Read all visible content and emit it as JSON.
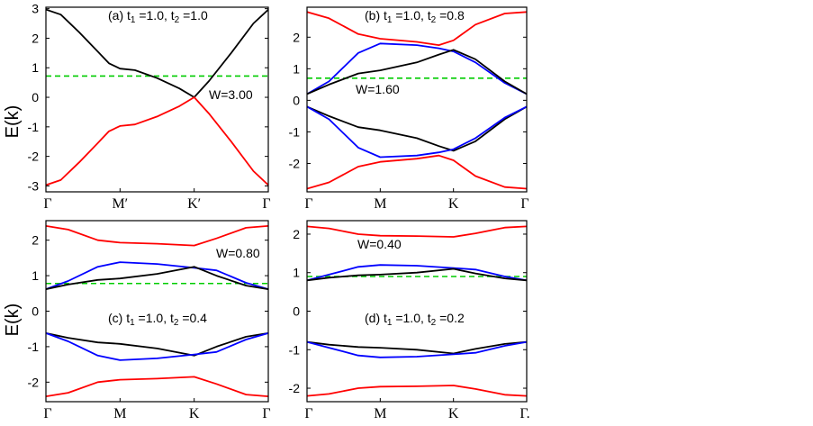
{
  "figure": {
    "ylabel": "E(k)"
  },
  "chart_data": [
    {
      "id": "a",
      "type": "line",
      "title": "(a) t1 =1.0, t2 =1.0",
      "title_parts": {
        "prefix": "(a) t",
        "mid": " =1.0, t",
        "suffix": " =1.0"
      },
      "annotation": "W=3.00",
      "xlabel": "",
      "ylabel": "E(k)",
      "xticks": [
        "Γ",
        "M′",
        "K′",
        "Γ"
      ],
      "ylim": [
        -3.2,
        3.05
      ],
      "yticks": [
        -3,
        -2,
        -1,
        0,
        1,
        2,
        3
      ],
      "fermi_level": 0.72,
      "x": [
        0,
        1,
        2,
        3
      ],
      "series": [
        {
          "name": "upper band",
          "color": "#000000",
          "points": [
            [
              0,
              2.97
            ],
            [
              0.2,
              2.8
            ],
            [
              0.45,
              2.2
            ],
            [
              0.7,
              1.55
            ],
            [
              0.85,
              1.15
            ],
            [
              1,
              0.97
            ],
            [
              1.2,
              0.92
            ],
            [
              1.5,
              0.65
            ],
            [
              1.8,
              0.3
            ],
            [
              2,
              0.0
            ],
            [
              2.2,
              0.55
            ],
            [
              2.5,
              1.5
            ],
            [
              2.8,
              2.5
            ],
            [
              3,
              2.97
            ]
          ]
        },
        {
          "name": "lower band",
          "color": "#ff0000",
          "points": [
            [
              0,
              -2.97
            ],
            [
              0.2,
              -2.8
            ],
            [
              0.45,
              -2.2
            ],
            [
              0.7,
              -1.55
            ],
            [
              0.85,
              -1.15
            ],
            [
              1,
              -0.97
            ],
            [
              1.2,
              -0.92
            ],
            [
              1.5,
              -0.65
            ],
            [
              1.8,
              -0.3
            ],
            [
              2,
              0.0
            ],
            [
              2.2,
              -0.55
            ],
            [
              2.5,
              -1.5
            ],
            [
              2.8,
              -2.5
            ],
            [
              3,
              -2.97
            ]
          ]
        }
      ]
    },
    {
      "id": "b",
      "type": "line",
      "title": "(b) t1 =1.0, t2 =0.8",
      "title_parts": {
        "prefix": "(b) t",
        "mid": " =1.0, t",
        "suffix": " =0.8"
      },
      "annotation": "W=1.60",
      "xlabel": "",
      "ylabel": "",
      "xticks": [
        "Γ",
        "M",
        "K",
        "Γ"
      ],
      "ylim": [
        -2.9,
        2.95
      ],
      "yticks": [
        -2,
        -1,
        0,
        1,
        2
      ],
      "fermi_level": 0.7,
      "x": [
        0,
        1,
        2,
        3
      ],
      "series": [
        {
          "name": "red upper",
          "color": "#ff0000",
          "points": [
            [
              0,
              2.8
            ],
            [
              0.3,
              2.6
            ],
            [
              0.7,
              2.1
            ],
            [
              1,
              1.95
            ],
            [
              1.5,
              1.85
            ],
            [
              1.8,
              1.75
            ],
            [
              2,
              1.9
            ],
            [
              2.3,
              2.4
            ],
            [
              2.7,
              2.75
            ],
            [
              3,
              2.8
            ]
          ]
        },
        {
          "name": "blue upper",
          "color": "#0000ff",
          "points": [
            [
              0,
              0.2
            ],
            [
              0.3,
              0.6
            ],
            [
              0.7,
              1.5
            ],
            [
              1,
              1.8
            ],
            [
              1.5,
              1.75
            ],
            [
              1.8,
              1.65
            ],
            [
              2,
              1.55
            ],
            [
              2.3,
              1.2
            ],
            [
              2.7,
              0.55
            ],
            [
              3,
              0.2
            ]
          ]
        },
        {
          "name": "black upper",
          "color": "#000000",
          "points": [
            [
              0,
              0.2
            ],
            [
              0.3,
              0.5
            ],
            [
              0.7,
              0.85
            ],
            [
              1,
              0.95
            ],
            [
              1.5,
              1.2
            ],
            [
              1.8,
              1.45
            ],
            [
              2,
              1.6
            ],
            [
              2.3,
              1.3
            ],
            [
              2.7,
              0.6
            ],
            [
              3,
              0.2
            ]
          ]
        },
        {
          "name": "black lower",
          "color": "#000000",
          "points": [
            [
              0,
              -0.2
            ],
            [
              0.3,
              -0.5
            ],
            [
              0.7,
              -0.85
            ],
            [
              1,
              -0.95
            ],
            [
              1.5,
              -1.2
            ],
            [
              1.8,
              -1.45
            ],
            [
              2,
              -1.6
            ],
            [
              2.3,
              -1.3
            ],
            [
              2.7,
              -0.6
            ],
            [
              3,
              -0.2
            ]
          ]
        },
        {
          "name": "blue lower",
          "color": "#0000ff",
          "points": [
            [
              0,
              -0.2
            ],
            [
              0.3,
              -0.6
            ],
            [
              0.7,
              -1.5
            ],
            [
              1,
              -1.8
            ],
            [
              1.5,
              -1.75
            ],
            [
              1.8,
              -1.65
            ],
            [
              2,
              -1.55
            ],
            [
              2.3,
              -1.2
            ],
            [
              2.7,
              -0.55
            ],
            [
              3,
              -0.2
            ]
          ]
        },
        {
          "name": "red lower",
          "color": "#ff0000",
          "points": [
            [
              0,
              -2.8
            ],
            [
              0.3,
              -2.6
            ],
            [
              0.7,
              -2.1
            ],
            [
              1,
              -1.95
            ],
            [
              1.5,
              -1.85
            ],
            [
              1.8,
              -1.75
            ],
            [
              2,
              -1.9
            ],
            [
              2.3,
              -2.4
            ],
            [
              2.7,
              -2.75
            ],
            [
              3,
              -2.8
            ]
          ]
        }
      ]
    },
    {
      "id": "c",
      "type": "line",
      "title": "(c) t1 =1.0, t2 =0.4",
      "title_parts": {
        "prefix": "(c) t",
        "mid": " =1.0, t",
        "suffix": " =0.4"
      },
      "annotation": "W=0.80",
      "xlabel": "",
      "ylabel": "E(k)",
      "xticks": [
        "Γ",
        "M",
        "K",
        "Γ"
      ],
      "ylim": [
        -2.55,
        2.55
      ],
      "yticks": [
        -2,
        -1,
        0,
        1,
        2
      ],
      "fermi_level": 0.78,
      "x": [
        0,
        1,
        2,
        3
      ],
      "series": [
        {
          "name": "red upper",
          "color": "#ff0000",
          "points": [
            [
              0,
              2.4
            ],
            [
              0.3,
              2.3
            ],
            [
              0.7,
              2.0
            ],
            [
              1,
              1.93
            ],
            [
              1.5,
              1.9
            ],
            [
              2,
              1.85
            ],
            [
              2.3,
              2.05
            ],
            [
              2.7,
              2.35
            ],
            [
              3,
              2.4
            ]
          ]
        },
        {
          "name": "blue upper",
          "color": "#0000ff",
          "points": [
            [
              0,
              0.62
            ],
            [
              0.3,
              0.85
            ],
            [
              0.7,
              1.25
            ],
            [
              1,
              1.38
            ],
            [
              1.5,
              1.33
            ],
            [
              2,
              1.22
            ],
            [
              2.3,
              1.15
            ],
            [
              2.7,
              0.8
            ],
            [
              3,
              0.62
            ]
          ]
        },
        {
          "name": "black upper",
          "color": "#000000",
          "points": [
            [
              0,
              0.62
            ],
            [
              0.3,
              0.75
            ],
            [
              0.7,
              0.88
            ],
            [
              1,
              0.92
            ],
            [
              1.5,
              1.05
            ],
            [
              2,
              1.25
            ],
            [
              2.3,
              1.0
            ],
            [
              2.7,
              0.72
            ],
            [
              3,
              0.62
            ]
          ]
        },
        {
          "name": "black lower",
          "color": "#000000",
          "points": [
            [
              0,
              -0.62
            ],
            [
              0.3,
              -0.75
            ],
            [
              0.7,
              -0.88
            ],
            [
              1,
              -0.92
            ],
            [
              1.5,
              -1.05
            ],
            [
              2,
              -1.25
            ],
            [
              2.3,
              -1.0
            ],
            [
              2.7,
              -0.72
            ],
            [
              3,
              -0.62
            ]
          ]
        },
        {
          "name": "blue lower",
          "color": "#0000ff",
          "points": [
            [
              0,
              -0.62
            ],
            [
              0.3,
              -0.85
            ],
            [
              0.7,
              -1.25
            ],
            [
              1,
              -1.38
            ],
            [
              1.5,
              -1.33
            ],
            [
              2,
              -1.22
            ],
            [
              2.3,
              -1.15
            ],
            [
              2.7,
              -0.8
            ],
            [
              3,
              -0.62
            ]
          ]
        },
        {
          "name": "red lower",
          "color": "#ff0000",
          "points": [
            [
              0,
              -2.4
            ],
            [
              0.3,
              -2.3
            ],
            [
              0.7,
              -2.0
            ],
            [
              1,
              -1.93
            ],
            [
              1.5,
              -1.9
            ],
            [
              2,
              -1.85
            ],
            [
              2.3,
              -2.05
            ],
            [
              2.7,
              -2.35
            ],
            [
              3,
              -2.4
            ]
          ]
        }
      ]
    },
    {
      "id": "d",
      "type": "line",
      "title": "(d) t1 =1.0, t2 =0.2",
      "title_parts": {
        "prefix": "(d) t",
        "mid": " =1.0, t",
        "suffix": " =0.2"
      },
      "annotation": "W=0.40",
      "xlabel": "",
      "ylabel": "",
      "xticks": [
        "Γ",
        "M",
        "K",
        "Γ."
      ],
      "ylim": [
        -2.35,
        2.35
      ],
      "yticks": [
        -2,
        -1,
        0,
        1,
        2
      ],
      "fermi_level": 0.9,
      "x": [
        0,
        1,
        2,
        3
      ],
      "series": [
        {
          "name": "red upper",
          "color": "#ff0000",
          "points": [
            [
              0,
              2.2
            ],
            [
              0.3,
              2.15
            ],
            [
              0.7,
              2.0
            ],
            [
              1,
              1.96
            ],
            [
              1.5,
              1.95
            ],
            [
              2,
              1.93
            ],
            [
              2.3,
              2.02
            ],
            [
              2.7,
              2.17
            ],
            [
              3,
              2.2
            ]
          ]
        },
        {
          "name": "blue upper",
          "color": "#0000ff",
          "points": [
            [
              0,
              0.8
            ],
            [
              0.3,
              0.95
            ],
            [
              0.7,
              1.15
            ],
            [
              1,
              1.2
            ],
            [
              1.5,
              1.18
            ],
            [
              2,
              1.12
            ],
            [
              2.3,
              1.08
            ],
            [
              2.7,
              0.9
            ],
            [
              3,
              0.8
            ]
          ]
        },
        {
          "name": "black upper",
          "color": "#000000",
          "points": [
            [
              0,
              0.8
            ],
            [
              0.3,
              0.87
            ],
            [
              0.7,
              0.93
            ],
            [
              1,
              0.95
            ],
            [
              1.5,
              1.0
            ],
            [
              2,
              1.1
            ],
            [
              2.3,
              0.98
            ],
            [
              2.7,
              0.85
            ],
            [
              3,
              0.8
            ]
          ]
        },
        {
          "name": "black lower",
          "color": "#000000",
          "points": [
            [
              0,
              -0.8
            ],
            [
              0.3,
              -0.87
            ],
            [
              0.7,
              -0.93
            ],
            [
              1,
              -0.95
            ],
            [
              1.5,
              -1.0
            ],
            [
              2,
              -1.1
            ],
            [
              2.3,
              -0.98
            ],
            [
              2.7,
              -0.85
            ],
            [
              3,
              -0.8
            ]
          ]
        },
        {
          "name": "blue lower",
          "color": "#0000ff",
          "points": [
            [
              0,
              -0.8
            ],
            [
              0.3,
              -0.95
            ],
            [
              0.7,
              -1.15
            ],
            [
              1,
              -1.2
            ],
            [
              1.5,
              -1.18
            ],
            [
              2,
              -1.12
            ],
            [
              2.3,
              -1.08
            ],
            [
              2.7,
              -0.9
            ],
            [
              3,
              -0.8
            ]
          ]
        },
        {
          "name": "red lower",
          "color": "#ff0000",
          "points": [
            [
              0,
              -2.2
            ],
            [
              0.3,
              -2.15
            ],
            [
              0.7,
              -2.0
            ],
            [
              1,
              -1.96
            ],
            [
              1.5,
              -1.95
            ],
            [
              2,
              -1.93
            ],
            [
              2.3,
              -2.02
            ],
            [
              2.7,
              -2.17
            ],
            [
              3,
              -2.2
            ]
          ]
        }
      ]
    }
  ],
  "colors": {
    "fermi": "#00cc00",
    "axis": "#000000"
  }
}
